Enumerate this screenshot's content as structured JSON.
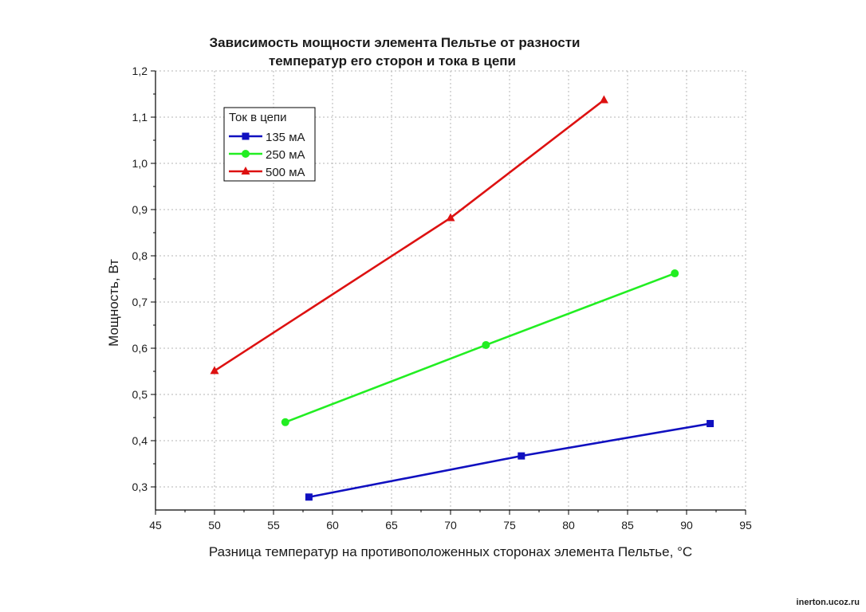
{
  "chart_data": {
    "type": "line",
    "title": [
      "Зависимость мощности элемента Пельтье от разности",
      "температур его сторон и тока в цепи"
    ],
    "xlabel": "Разница температур на противоположенных сторонах элемента Пельтье, °C",
    "ylabel": "Мощность, Вт",
    "xlim": [
      45,
      95
    ],
    "ylim": [
      0.25,
      1.2
    ],
    "xticks": [
      45,
      50,
      55,
      60,
      65,
      70,
      75,
      80,
      85,
      90,
      95
    ],
    "yticks": [
      0.3,
      0.4,
      0.5,
      0.6,
      0.7,
      0.8,
      0.9,
      1.0,
      1.1,
      1.2
    ],
    "ytick_labels": [
      "0,3",
      "0,4",
      "0,5",
      "0,6",
      "0,7",
      "0,8",
      "0,9",
      "1,0",
      "1,1",
      "1,2"
    ],
    "grid": true,
    "legend": {
      "title": "Ток в цепи",
      "placement": "top-left"
    },
    "series": [
      {
        "name": "135 мА",
        "color": "#1010c0",
        "marker": "square",
        "x": [
          58,
          76,
          92
        ],
        "y": [
          0.278,
          0.367,
          0.437
        ]
      },
      {
        "name": "250 мА",
        "color": "#22ee22",
        "marker": "circle",
        "x": [
          56,
          73,
          89
        ],
        "y": [
          0.44,
          0.607,
          0.762
        ]
      },
      {
        "name": "500 мА",
        "color": "#dd1111",
        "marker": "triangle",
        "x": [
          50,
          70,
          83
        ],
        "y": [
          0.551,
          0.882,
          1.137
        ]
      }
    ]
  },
  "watermark": "inerton.ucoz.ru"
}
